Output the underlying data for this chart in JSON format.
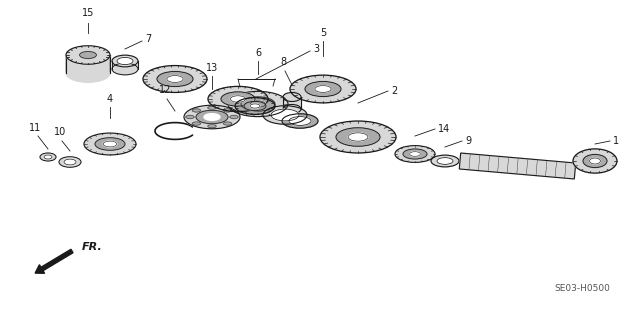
{
  "bg_color": "#ffffff",
  "fig_width": 6.4,
  "fig_height": 3.19,
  "watermark": "SE03-H0500",
  "fr_label": "FR.",
  "line_color": "#1a1a1a",
  "label_fontsize": 7.0,
  "gear_fill": "#d8d8d8",
  "gear_dark": "#555555",
  "gear_mid": "#aaaaaa",
  "white": "#ffffff"
}
